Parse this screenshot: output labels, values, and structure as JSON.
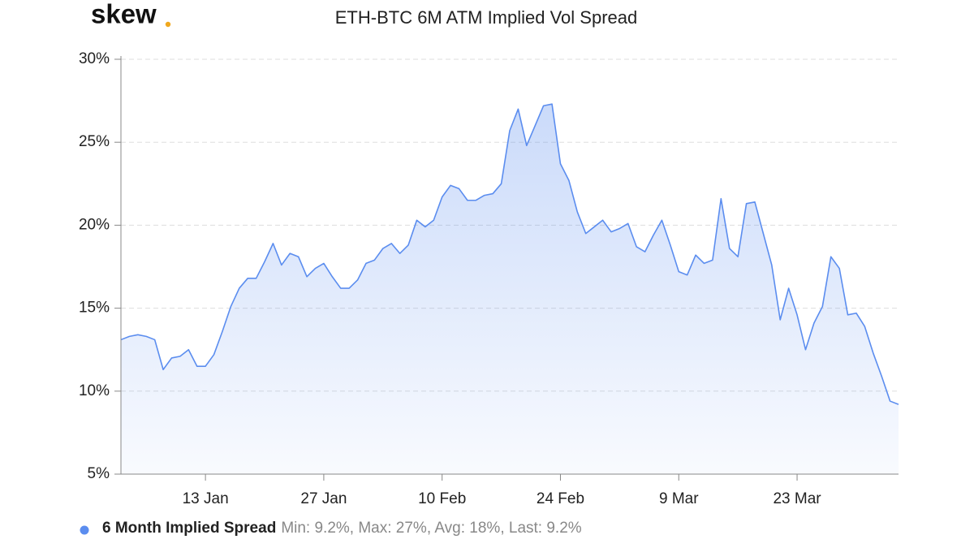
{
  "logo": "skew",
  "chart_data": {
    "type": "area",
    "title": "ETH-BTC 6M ATM Implied Vol Spread",
    "categories": [
      null,
      null,
      null,
      null,
      null,
      null,
      null,
      null,
      null,
      null,
      "13 Jan",
      null,
      null,
      null,
      null,
      null,
      null,
      null,
      null,
      null,
      null,
      null,
      null,
      null,
      "27 Jan",
      null,
      null,
      null,
      null,
      null,
      null,
      null,
      null,
      null,
      null,
      null,
      null,
      null,
      "10 Feb",
      null,
      null,
      null,
      null,
      null,
      null,
      null,
      null,
      null,
      null,
      null,
      null,
      null,
      "24 Feb",
      null,
      null,
      null,
      null,
      null,
      null,
      null,
      null,
      null,
      null,
      null,
      null,
      null,
      "9 Mar",
      null,
      null,
      null,
      null,
      null,
      null,
      null,
      null,
      null,
      null,
      null,
      null,
      null,
      "23 Mar",
      null,
      null,
      null,
      null,
      null,
      null,
      null,
      null,
      null,
      null,
      null,
      null
    ],
    "series": [
      {
        "name": "6 Month Implied Spread",
        "color": "#5b8def",
        "values": [
          13.1,
          13.3,
          13.4,
          13.3,
          13.1,
          11.3,
          12.0,
          12.1,
          12.5,
          11.5,
          11.5,
          12.2,
          13.6,
          15.1,
          16.2,
          16.8,
          16.8,
          17.8,
          18.9,
          17.6,
          18.3,
          18.1,
          16.9,
          17.4,
          17.7,
          16.9,
          16.2,
          16.2,
          16.7,
          17.7,
          17.9,
          18.6,
          18.9,
          18.3,
          18.8,
          20.3,
          19.9,
          20.3,
          21.7,
          22.4,
          22.2,
          21.5,
          21.5,
          21.8,
          21.9,
          22.5,
          25.7,
          27.0,
          24.8,
          26.0,
          27.2,
          27.3,
          23.7,
          22.7,
          20.8,
          19.5,
          19.9,
          20.3,
          19.6,
          19.8,
          20.1,
          18.7,
          18.4,
          19.4,
          20.3,
          18.8,
          17.2,
          17.0,
          18.2,
          17.7,
          17.9,
          21.6,
          18.6,
          18.1,
          21.3,
          21.4,
          19.5,
          17.6,
          14.3,
          16.2,
          14.6,
          12.5,
          14.1,
          15.1,
          18.1,
          17.4,
          14.6,
          14.7,
          13.9,
          12.3,
          10.9,
          9.4,
          9.2
        ]
      }
    ],
    "legend_stats": "Min: 9.2%, Max: 27%, Avg: 18%, Last: 9.2%",
    "ylim": [
      5,
      30
    ],
    "yticks": [
      {
        "value": 5,
        "label": "5%"
      },
      {
        "value": 10,
        "label": "10%"
      },
      {
        "value": 15,
        "label": "15%"
      },
      {
        "value": 20,
        "label": "20%"
      },
      {
        "value": 25,
        "label": "25%"
      },
      {
        "value": 30,
        "label": "30%"
      }
    ],
    "grid": true
  }
}
